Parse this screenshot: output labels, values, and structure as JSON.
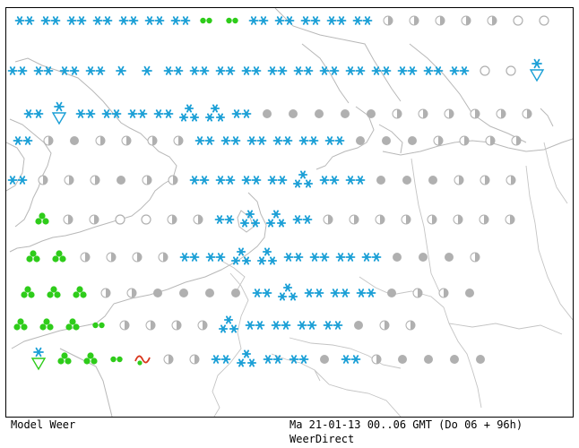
{
  "footer": {
    "model_label": "Model Weer",
    "run_info": "Ma 21-01-13 00..06 GMT (Do 06 + 96h)",
    "source": "WeerDirect"
  },
  "colors": {
    "snow": "#1a9fd6",
    "overcast": "#b0b0b0",
    "shower": "#2ecc1a",
    "coast": "#b8b8b8",
    "border": "#000000",
    "drizzle_red": "#d9361c"
  },
  "legend_symbols": [
    "snow-pair",
    "snow-single",
    "snow-cluster",
    "overcast-disc",
    "half-cloud-disc",
    "open-disc",
    "shower-cluster",
    "rain-drops",
    "snow-shower-triangle",
    "mixed-rain-symbol"
  ],
  "rows": [
    [
      "SS",
      "SS",
      "SS",
      "SS",
      "SS",
      "SS",
      "SS",
      "RR",
      "RR",
      "SS",
      "SS",
      "SS",
      "SS",
      "SS",
      "H",
      "H",
      "H",
      "H",
      "H",
      "O",
      "O"
    ],
    [
      "SS",
      "SS",
      "SS",
      "SS",
      "S",
      "S",
      "SS",
      "SS",
      "SS",
      "SS",
      "SS",
      "SS",
      "SS",
      "SS",
      "SS",
      "SS",
      "SS",
      "SS",
      "O",
      "O",
      "T"
    ],
    [
      "SS",
      "T",
      "SS",
      "SS",
      "SS",
      "SS",
      "C",
      "C",
      "SS",
      "D",
      "D",
      "D",
      "D",
      "D",
      "H",
      "H",
      "H",
      "H",
      "H",
      "H"
    ],
    [
      "SS",
      "H",
      "D",
      "H",
      "H",
      "H",
      "H",
      "SS",
      "SS",
      "SS",
      "SS",
      "SS",
      "SS",
      "D",
      "D",
      "D",
      "H",
      "H",
      "H",
      "H"
    ],
    [
      "SS",
      "H",
      "H",
      "H",
      "D",
      "H",
      "H",
      "SS",
      "SS",
      "SS",
      "SS",
      "C",
      "SS",
      "SS",
      "D",
      "D",
      "D",
      "H",
      "H",
      "H"
    ],
    [
      "G",
      "H",
      "H",
      "O",
      "O",
      "H",
      "H",
      "SS",
      "C",
      "C",
      "SS",
      "H",
      "H",
      "H",
      "H",
      "H",
      "H",
      "H",
      "H"
    ],
    [
      "G",
      "G",
      "H",
      "H",
      "H",
      "H",
      "SS",
      "SS",
      "C",
      "C",
      "SS",
      "SS",
      "SS",
      "SS",
      "D",
      "D",
      "D",
      "H"
    ],
    [
      "G",
      "G",
      "G",
      "H",
      "H",
      "D",
      "D",
      "D",
      "D",
      "SS",
      "C",
      "SS",
      "SS",
      "SS",
      "D",
      "H",
      "H",
      "D"
    ],
    [
      "G",
      "G",
      "G",
      "RR",
      "H",
      "H",
      "H",
      "H",
      "C",
      "SS",
      "SS",
      "SS",
      "SS",
      "D",
      "H",
      "H"
    ],
    [
      "T",
      "G",
      "G",
      "RR",
      "X",
      "H",
      "H",
      "SS",
      "C",
      "SS",
      "SS",
      "D",
      "SS",
      "H",
      "D",
      "D",
      "D",
      "D"
    ]
  ]
}
